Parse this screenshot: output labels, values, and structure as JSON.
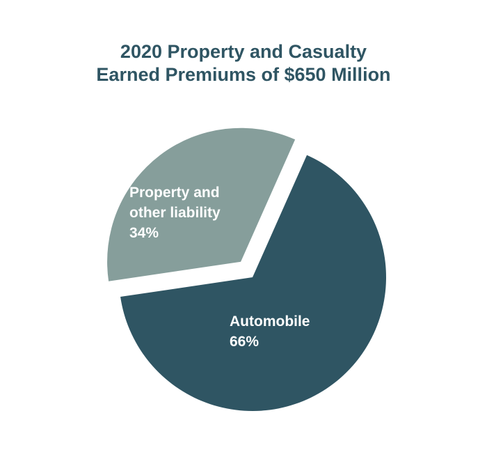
{
  "chart_data": {
    "type": "pie",
    "title": [
      "2020 Property and Casualty",
      "Earned Premiums of $650 Million"
    ],
    "slices": [
      {
        "label_lines": [
          "Automobile",
          "66%"
        ],
        "value": 66,
        "color": "#2f5563",
        "exploded": false
      },
      {
        "label_lines": [
          "Property and",
          "other liability",
          "34%"
        ],
        "value": 34,
        "color": "#869e9b",
        "exploded": true
      }
    ]
  }
}
